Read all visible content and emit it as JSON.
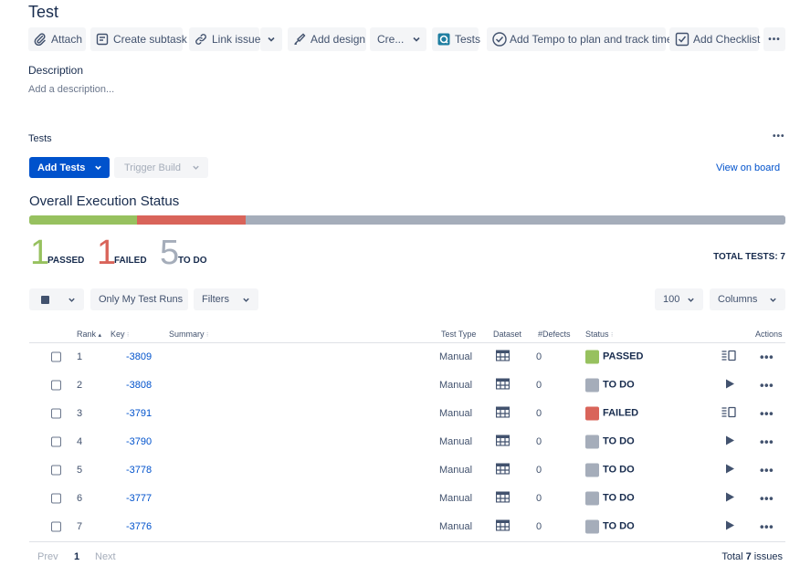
{
  "issue": {
    "title": "Test"
  },
  "toolbar": {
    "attach": "Attach",
    "create_subtask": "Create subtask",
    "link_issue": "Link issue",
    "add_design": "Add design",
    "create": "Cre...",
    "tests": "Tests",
    "tempo": "Add Tempo to plan and track time",
    "checklist": "Add Checklist",
    "more": "•••"
  },
  "description": {
    "label": "Description",
    "placeholder": "Add a description..."
  },
  "tests_section": {
    "label": "Tests",
    "more": "•••",
    "add_tests": "Add Tests",
    "trigger_build": "Trigger Build",
    "view_on_board": "View on board"
  },
  "execution": {
    "heading": "Overall Execution Status",
    "passed_count": "1",
    "passed_label": "PASSED",
    "failed_count": "1",
    "failed_label": "FAILED",
    "todo_count": "5",
    "todo_label": "TO DO",
    "total": "TOTAL TESTS: 7",
    "fractions": {
      "passed": 0.1429,
      "failed": 0.1429,
      "todo": 0.7142
    },
    "colors": {
      "passed": "#97c15f",
      "failed": "#d9645a",
      "todo": "#a5adba"
    }
  },
  "controls": {
    "only_my_runs": "Only My Test Runs",
    "filters": "Filters",
    "page_size": "100",
    "columns": "Columns"
  },
  "table": {
    "headers": {
      "rank": "Rank",
      "key": "Key",
      "summary": "Summary",
      "test_type": "Test Type",
      "dataset": "Dataset",
      "defects": "#Defects",
      "status": "Status",
      "actions": "Actions"
    },
    "rows": [
      {
        "rank": "1",
        "key": "-3809",
        "type": "Manual",
        "defects": "0",
        "status": "PASSED",
        "color": "#97c15f",
        "action": "details-icon"
      },
      {
        "rank": "2",
        "key": "-3808",
        "type": "Manual",
        "defects": "0",
        "status": "TO DO",
        "color": "#a5adba",
        "action": "play-icon"
      },
      {
        "rank": "3",
        "key": "-3791",
        "type": "Manual",
        "defects": "0",
        "status": "FAILED",
        "color": "#d9645a",
        "action": "details-icon"
      },
      {
        "rank": "4",
        "key": "-3790",
        "type": "Manual",
        "defects": "0",
        "status": "TO DO",
        "color": "#a5adba",
        "action": "play-icon"
      },
      {
        "rank": "5",
        "key": "-3778",
        "type": "Manual",
        "defects": "0",
        "status": "TO DO",
        "color": "#a5adba",
        "action": "play-icon"
      },
      {
        "rank": "6",
        "key": "-3777",
        "type": "Manual",
        "defects": "0",
        "status": "TO DO",
        "color": "#a5adba",
        "action": "play-icon"
      },
      {
        "rank": "7",
        "key": "-3776",
        "type": "Manual",
        "defects": "0",
        "status": "TO DO",
        "color": "#a5adba",
        "action": "play-icon"
      }
    ]
  },
  "pagination": {
    "prev": "Prev",
    "current": "1",
    "next": "Next",
    "total_prefix": "Total ",
    "total_count": "7",
    "total_suffix": " issues"
  }
}
